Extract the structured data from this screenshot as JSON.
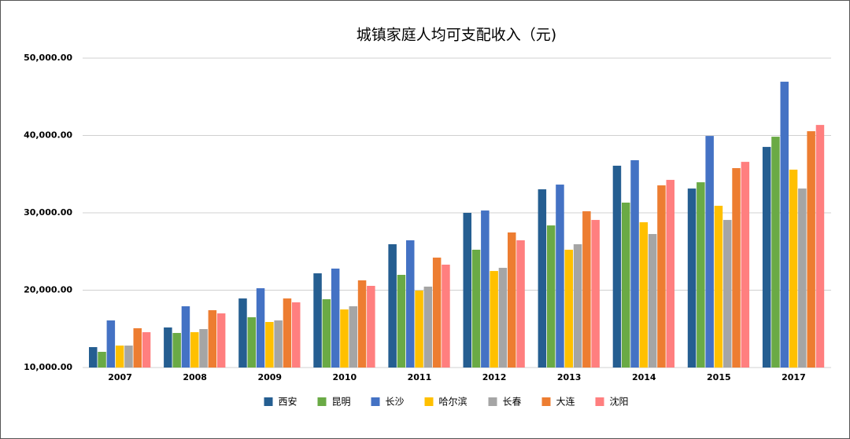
{
  "chart_data": {
    "type": "bar",
    "title": "城镇家庭人均可支配收入（元)",
    "categories": [
      "2007",
      "2008",
      "2009",
      "2010",
      "2011",
      "2012",
      "2013",
      "2014",
      "2015",
      "2017"
    ],
    "series": [
      {
        "name": "西安",
        "color": "#255e91",
        "values": [
          12640,
          15180,
          18930,
          22180,
          25940,
          30000,
          33040,
          36090,
          33140,
          38520
        ]
      },
      {
        "name": "昆明",
        "color": "#6aaa45",
        "values": [
          12030,
          14470,
          16500,
          18830,
          21980,
          25230,
          28370,
          31320,
          33950,
          39840
        ]
      },
      {
        "name": "长沙",
        "color": "#4472c4",
        "values": [
          16090,
          17920,
          20250,
          22790,
          26450,
          30300,
          33650,
          36800,
          39940,
          46950
        ]
      },
      {
        "name": "哈尔滨",
        "color": "#ffc000",
        "values": [
          12840,
          14570,
          15890,
          17510,
          19950,
          22480,
          25230,
          28780,
          30910,
          35580
        ]
      },
      {
        "name": "长春",
        "color": "#a5a5a5",
        "values": [
          12840,
          14970,
          16090,
          17920,
          20460,
          22890,
          25940,
          27260,
          29080,
          33140
        ]
      },
      {
        "name": "大连",
        "color": "#ed7d31",
        "values": [
          15080,
          17410,
          18930,
          21270,
          24210,
          27460,
          30200,
          33550,
          35780,
          40550
        ]
      },
      {
        "name": "沈阳",
        "color": "#ff7f7f",
        "values": [
          14570,
          17000,
          18430,
          20560,
          23300,
          26450,
          29080,
          34260,
          36590,
          41360
        ]
      }
    ],
    "ylim": [
      10000,
      50000
    ],
    "yticks": [
      {
        "value": 10000,
        "label": "10,000.00"
      },
      {
        "value": 20000,
        "label": "20,000.00"
      },
      {
        "value": 30000,
        "label": "30,000.00"
      },
      {
        "value": 40000,
        "label": "40,000.00"
      },
      {
        "value": 50000,
        "label": "50,000.00"
      }
    ],
    "grid": true,
    "legend": "bottom"
  }
}
